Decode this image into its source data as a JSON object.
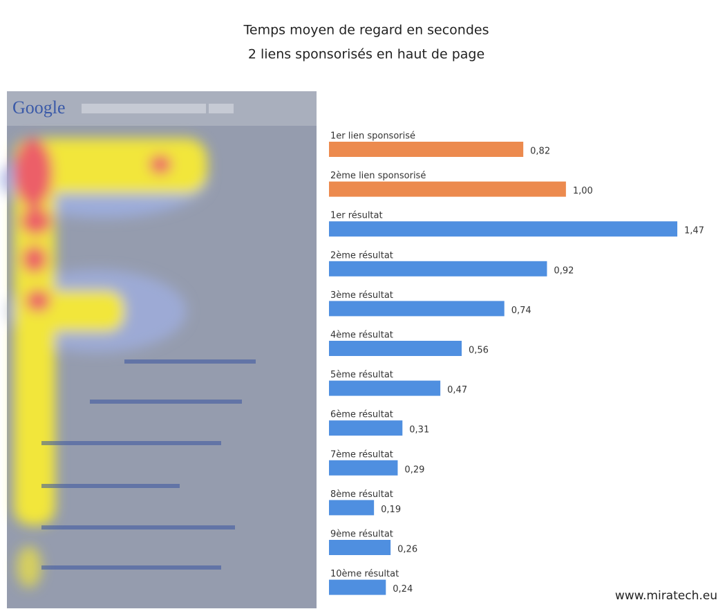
{
  "chart_data": {
    "type": "bar",
    "orientation": "horizontal",
    "title": "Temps moyen de regard en secondes",
    "subtitle": "2 liens sponsorisés en haut de page",
    "categories": [
      "1er lien sponsorisé",
      "2ème lien sponsorisé",
      "1er résultat",
      "2ème résultat",
      "3ème résultat",
      "4ème résultat",
      "5ème résultat",
      "6ème résultat",
      "7ème résultat",
      "8ème résultat",
      "9ème résultat",
      "10ème résultat"
    ],
    "values": [
      0.82,
      1.0,
      1.47,
      0.92,
      0.74,
      0.56,
      0.47,
      0.31,
      0.29,
      0.19,
      0.26,
      0.24
    ],
    "value_labels": [
      "0,82",
      "1,00",
      "1,47",
      "0,92",
      "0,74",
      "0,56",
      "0,47",
      "0,31",
      "0,29",
      "0,19",
      "0,26",
      "0,24"
    ],
    "colors": [
      "#ec8a4e",
      "#ec8a4e",
      "#4f8fe0",
      "#4f8fe0",
      "#4f8fe0",
      "#4f8fe0",
      "#4f8fe0",
      "#4f8fe0",
      "#4f8fe0",
      "#4f8fe0",
      "#4f8fe0",
      "#4f8fe0"
    ],
    "source": "www.miratech.eu"
  },
  "heatmap": {
    "logo": "Google"
  }
}
